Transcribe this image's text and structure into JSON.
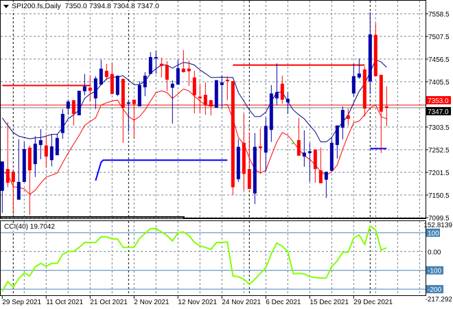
{
  "header": {
    "symbol": "SPI200.fs,Daily",
    "open": "7350.0",
    "high": "7394.8",
    "low": "7304.8",
    "close": "7347.0"
  },
  "colors": {
    "bull": "#0000aa",
    "bear": "#ff0000",
    "doji": "#33ff33",
    "ma_upper": "#000080",
    "ma_lower": "#ff0000",
    "cci": "#80ff00",
    "cci_level": "#4682b4",
    "grid": "#708090"
  },
  "price_axis": {
    "ticks": [
      "7558.5",
      "7507.5",
      "7456.5",
      "7405.5",
      "7303.5",
      "7252.5",
      "7201.5",
      "7150.5",
      "7099.5"
    ],
    "ask_label": "7353.0",
    "bid_label": "7347.0",
    "ask": 7353.0,
    "bid": 7347.0
  },
  "cci_panel": {
    "label": "CCI(40) 19.7042",
    "max_label": "152.8139",
    "min_label": "-217.292",
    "levels": [
      "100",
      "0.00",
      "-100",
      "-200"
    ],
    "range": [
      -217.292,
      152.8139
    ]
  },
  "date_axis": {
    "labels": [
      {
        "i": 0,
        "text": "29 Sep 2021"
      },
      {
        "i": 8,
        "text": "11 Oct 2021"
      },
      {
        "i": 16,
        "text": "21 Oct 2021"
      },
      {
        "i": 24,
        "text": "2 Nov 2021"
      },
      {
        "i": 32,
        "text": "12 Nov 2021"
      },
      {
        "i": 40,
        "text": "24 Nov 2021"
      },
      {
        "i": 48,
        "text": "6 Dec 2021"
      },
      {
        "i": 56,
        "text": "15 Dec 2021"
      },
      {
        "i": 64,
        "text": "29 Dec 2021"
      }
    ]
  },
  "chart_data": {
    "type": "candlestick",
    "ylim": [
      7099.5,
      7558.5
    ],
    "ohlc": [
      [
        7160,
        7226,
        7110,
        7226
      ],
      [
        7209,
        7314,
        7168,
        7178
      ],
      [
        7203,
        7203,
        7107,
        7180
      ],
      [
        7140,
        7276,
        7140,
        7180
      ],
      [
        7180,
        7270,
        7180,
        7254
      ],
      [
        7257,
        7262,
        7106,
        7206
      ],
      [
        7220,
        7283,
        7191,
        7266
      ],
      [
        7263,
        7299,
        7231,
        7274
      ],
      [
        7262,
        7285,
        7212,
        7237
      ],
      [
        7229,
        7287,
        7215,
        7260
      ],
      [
        7240,
        7287,
        7240,
        7279
      ],
      [
        7290,
        7344,
        7277,
        7333
      ],
      [
        7345,
        7365,
        7331,
        7361
      ],
      [
        7364,
        7364,
        7307,
        7333
      ],
      [
        7330,
        7385,
        7330,
        7385
      ],
      [
        7384,
        7423,
        7375,
        7395
      ],
      [
        7392,
        7418,
        7361,
        7385
      ],
      [
        7368,
        7418,
        7344,
        7413
      ],
      [
        7399,
        7455,
        7399,
        7435
      ],
      [
        7430,
        7446,
        7409,
        7416
      ],
      [
        7423,
        7449,
        7378,
        7378
      ],
      [
        7376,
        7419,
        7373,
        7419
      ],
      [
        7412,
        7412,
        7268,
        7347
      ],
      [
        7358,
        7362,
        7293,
        7359
      ],
      [
        7365,
        7365,
        7277,
        7355
      ],
      [
        7350,
        7407,
        7350,
        7398
      ],
      [
        7393,
        7427,
        7373,
        7419
      ],
      [
        7423,
        7472,
        7423,
        7461
      ],
      [
        7458,
        7475,
        7423,
        7461
      ],
      [
        7446,
        7460,
        7415,
        7441
      ],
      [
        7443,
        7452,
        7385,
        7410
      ],
      [
        7392,
        7409,
        7311,
        7401
      ],
      [
        7399,
        7455,
        7399,
        7436
      ],
      [
        7435,
        7477,
        7426,
        7427
      ],
      [
        7435,
        7453,
        7396,
        7429
      ],
      [
        7415,
        7430,
        7334,
        7375
      ],
      [
        7372,
        7399,
        7336,
        7368
      ],
      [
        7376,
        7404,
        7331,
        7352
      ],
      [
        7364,
        7364,
        7330,
        7350
      ],
      [
        7347,
        7409,
        7347,
        7409
      ],
      [
        7398,
        7419,
        7347,
        7404
      ],
      [
        7410,
        7418,
        7364,
        7407
      ],
      [
        7407,
        7407,
        7151,
        7168
      ],
      [
        7186,
        7276,
        7180,
        7259
      ],
      [
        7268,
        7333,
        7161,
        7198
      ],
      [
        7209,
        7291,
        7164,
        7164
      ],
      [
        7154,
        7290,
        7130,
        7259
      ],
      [
        7260,
        7300,
        7198,
        7256
      ],
      [
        7246,
        7325,
        7203,
        7306
      ],
      [
        7297,
        7398,
        7270,
        7379
      ],
      [
        7368,
        7447,
        7353,
        7382
      ],
      [
        7401,
        7419,
        7356,
        7365
      ],
      [
        7359,
        7382,
        7333,
        7367
      ],
      [
        7268,
        7268,
        7268,
        7268
      ],
      [
        7274,
        7324,
        7239,
        7239
      ],
      [
        7237,
        7296,
        7214,
        7246
      ],
      [
        7245,
        7268,
        7180,
        7249
      ],
      [
        7253,
        7253,
        7178,
        7209
      ],
      [
        7206,
        7257,
        7177,
        7177
      ],
      [
        7185,
        7203,
        7144,
        7203
      ],
      [
        7205,
        7279,
        7205,
        7268
      ],
      [
        7263,
        7307,
        7232,
        7307
      ],
      [
        7302,
        7350,
        7276,
        7342
      ],
      [
        7330,
        7345,
        7307,
        7322
      ],
      [
        7379,
        7446,
        7372,
        7418
      ],
      [
        7415,
        7458,
        7412,
        7424
      ],
      [
        7433,
        7440,
        7327,
        7345
      ],
      [
        7406,
        7562,
        7378,
        7512
      ],
      [
        7511,
        7537,
        7418,
        7418
      ],
      [
        7421,
        7421,
        7245,
        7338
      ],
      [
        7350,
        7394.8,
        7304.8,
        7347
      ]
    ],
    "ma_upper": [
      7324,
      7307,
      7291,
      7283,
      7280,
      7277,
      7279,
      7280,
      7283,
      7287,
      7287,
      7302,
      7322,
      7331,
      7342,
      7368,
      7378,
      7384,
      7399,
      7412,
      7416,
      7416,
      7419,
      7409,
      7399,
      7399,
      7407,
      7424,
      7435,
      7443,
      7443,
      7436,
      7443,
      7449,
      7447,
      7443,
      7432,
      7424,
      7415,
      7415,
      7416,
      7415,
      7415,
      7381,
      7362,
      7342,
      7327,
      7327,
      7337,
      7361,
      7382,
      7382,
      7361,
      7342,
      7331,
      7322,
      7307,
      7293,
      7270,
      7270,
      7280,
      7300,
      7314,
      7331,
      7358,
      7384,
      7401,
      7427,
      7455,
      7450,
      7438
    ],
    "ma_lower": [
      7203,
      7198,
      7169,
      7168,
      7164,
      7152,
      7161,
      7177,
      7191,
      7195,
      7200,
      7223,
      7245,
      7265,
      7285,
      7307,
      7316,
      7324,
      7353,
      7358,
      7362,
      7364,
      7344,
      7327,
      7319,
      7327,
      7342,
      7362,
      7381,
      7385,
      7381,
      7368,
      7378,
      7389,
      7385,
      7373,
      7362,
      7353,
      7350,
      7353,
      7353,
      7354,
      7322,
      7280,
      7265,
      7234,
      7208,
      7200,
      7206,
      7239,
      7270,
      7291,
      7285,
      7270,
      7254,
      7239,
      7231,
      7218,
      7203,
      7195,
      7203,
      7218,
      7254,
      7285,
      7313,
      7317,
      7331,
      7347,
      7353,
      7327,
      7322
    ],
    "cci": [
      -211,
      -160,
      -189,
      -144,
      -114,
      -130,
      -81,
      -63,
      -78,
      -63,
      -63,
      -15,
      0,
      0,
      22,
      48,
      48,
      48,
      78,
      78,
      67,
      67,
      22,
      22,
      22,
      70,
      96,
      122,
      122,
      104,
      85,
      56,
      100,
      104,
      85,
      48,
      30,
      22,
      11,
      48,
      48,
      50,
      -129,
      -134,
      -147,
      -174,
      -147,
      -116,
      -86,
      -12,
      45,
      28,
      0,
      -118,
      -116,
      -119,
      -134,
      -138,
      -141,
      -141,
      -80,
      -50,
      -4,
      -4,
      72,
      88,
      38,
      136,
      115,
      8,
      19.7042
    ],
    "levels": [
      {
        "price": 7397,
        "from": 0,
        "to": 16,
        "color": "#ff0000"
      },
      {
        "price": 7443,
        "from": 42,
        "to": 66,
        "color": "#ff0000"
      },
      {
        "price": 7229,
        "from": 18,
        "to": 41,
        "color": "#0000ff",
        "ramp_from": 7183
      },
      {
        "price": 7255,
        "from": 67,
        "to": 70,
        "color": "#0000ff"
      }
    ]
  }
}
